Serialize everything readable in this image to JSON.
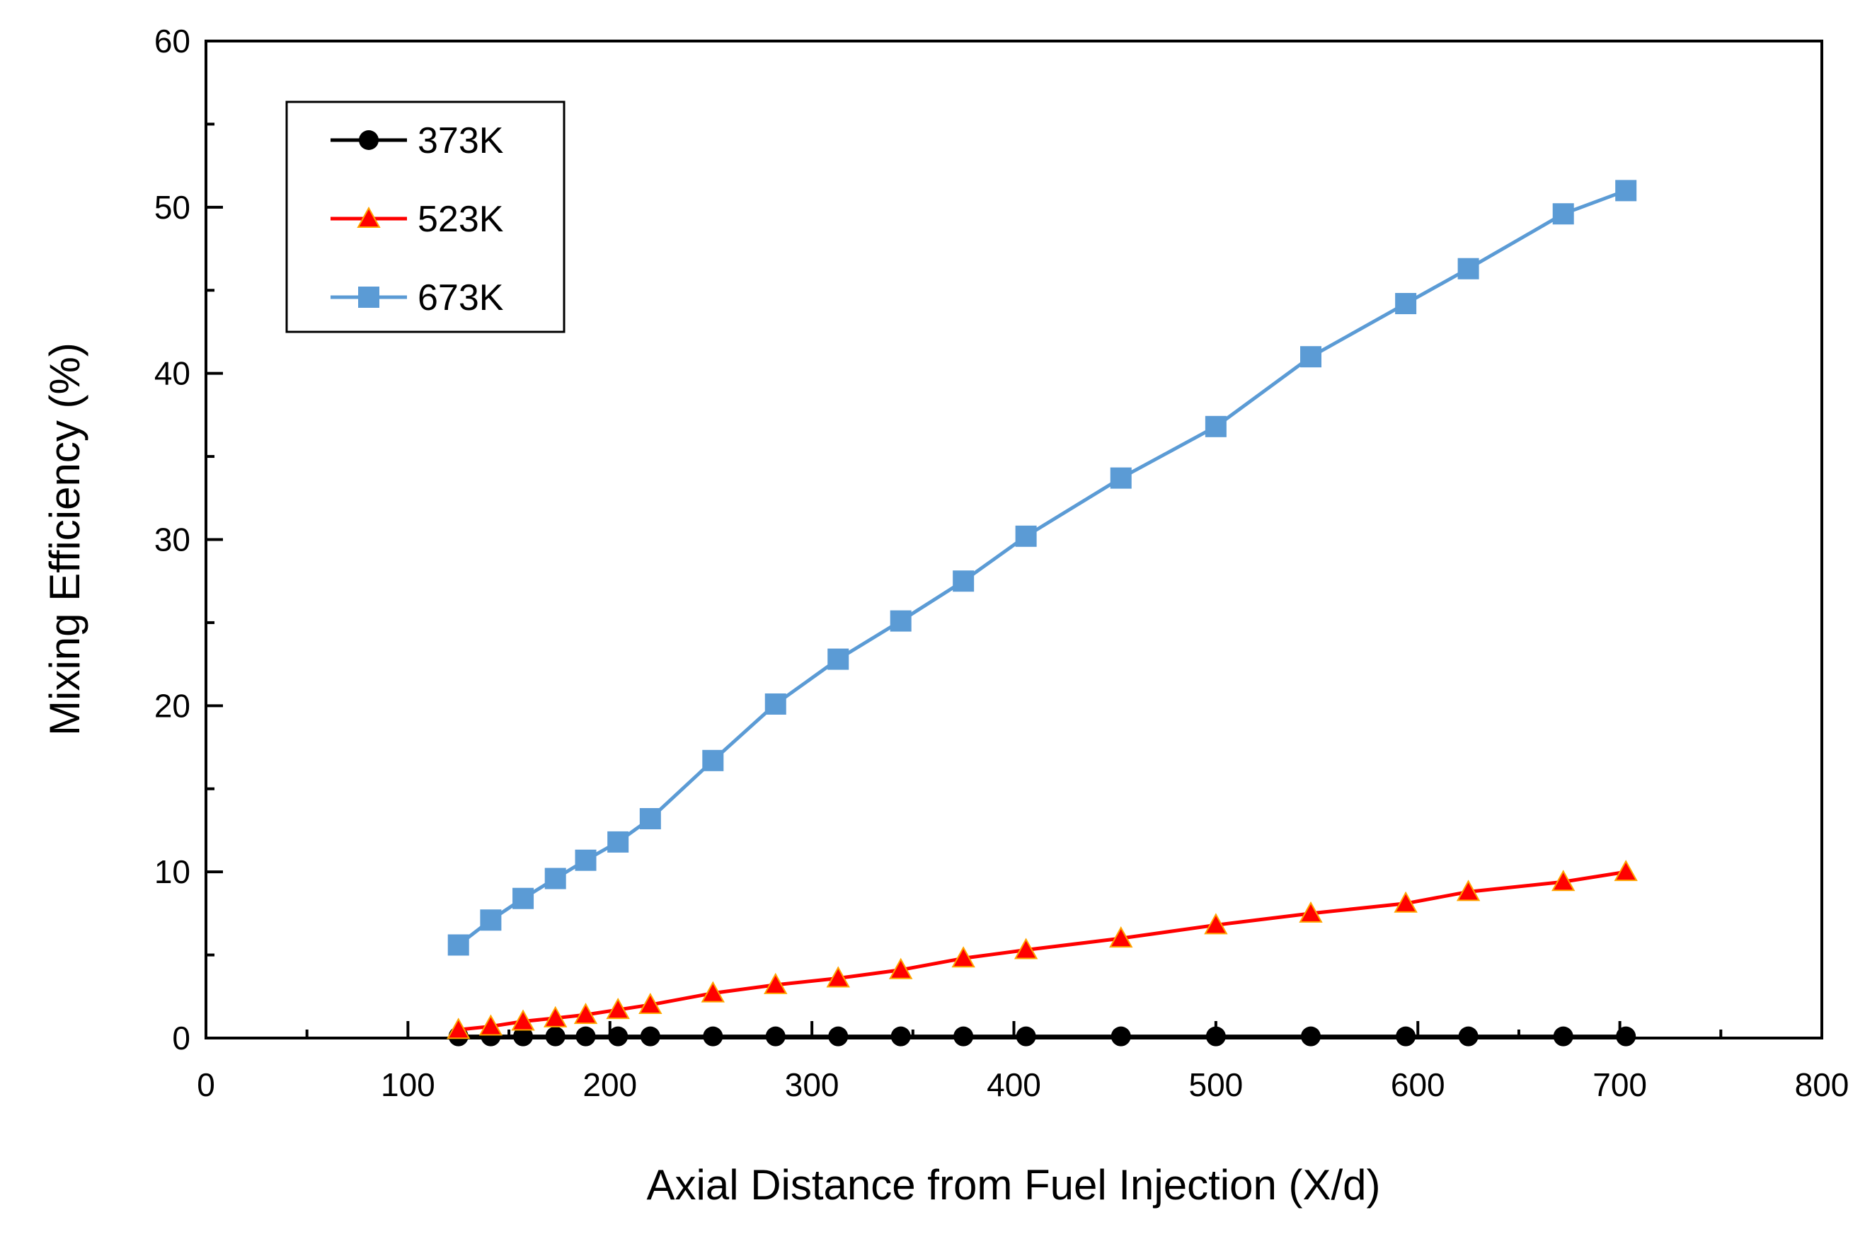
{
  "chart_data": {
    "type": "line",
    "title": "",
    "xlabel": "Axial Distance from Fuel Injection (X/d)",
    "ylabel": "Mixing Efficiency (%)",
    "xlim": [
      0,
      800
    ],
    "ylim": [
      0,
      60
    ],
    "xticks": [
      0,
      100,
      200,
      300,
      400,
      500,
      600,
      700,
      800
    ],
    "yticks": [
      0,
      10,
      20,
      30,
      40,
      50,
      60
    ],
    "xtick_labels": [
      "0",
      "100",
      "200",
      "300",
      "400",
      "500",
      "600",
      "700",
      "800"
    ],
    "ytick_labels": [
      "0",
      "10",
      "20",
      "30",
      "40",
      "50",
      "60"
    ],
    "grid": false,
    "legend_position": "top-left",
    "series": [
      {
        "name": "373K",
        "color": "#000000",
        "marker": "circle",
        "x": [
          125,
          141,
          157,
          173,
          188,
          204,
          220,
          251,
          282,
          313,
          344,
          375,
          406,
          453,
          500,
          547,
          594,
          625,
          672,
          703
        ],
        "y": [
          0.1,
          0.1,
          0.1,
          0.1,
          0.1,
          0.1,
          0.1,
          0.1,
          0.1,
          0.1,
          0.1,
          0.1,
          0.1,
          0.1,
          0.1,
          0.1,
          0.1,
          0.1,
          0.1,
          0.1
        ]
      },
      {
        "name": "523K",
        "color": "#ff0000",
        "marker": "triangle",
        "x": [
          125,
          141,
          157,
          173,
          188,
          204,
          220,
          251,
          282,
          313,
          344,
          375,
          406,
          453,
          500,
          547,
          594,
          625,
          672,
          703
        ],
        "y": [
          0.5,
          0.7,
          1.0,
          1.2,
          1.4,
          1.7,
          2.0,
          2.7,
          3.2,
          3.6,
          4.1,
          4.8,
          5.3,
          6.0,
          6.8,
          7.5,
          8.1,
          8.8,
          9.4,
          10.0
        ]
      },
      {
        "name": "673K",
        "color": "#5b9bd5",
        "marker": "square",
        "x": [
          125,
          141,
          157,
          173,
          188,
          204,
          220,
          251,
          282,
          313,
          344,
          375,
          406,
          453,
          500,
          547,
          594,
          625,
          672,
          703
        ],
        "y": [
          5.6,
          7.1,
          8.4,
          9.6,
          10.7,
          11.8,
          13.2,
          16.7,
          20.1,
          22.8,
          25.1,
          27.5,
          30.2,
          33.7,
          36.8,
          41.0,
          44.2,
          46.3,
          49.6,
          51.0
        ]
      }
    ]
  }
}
